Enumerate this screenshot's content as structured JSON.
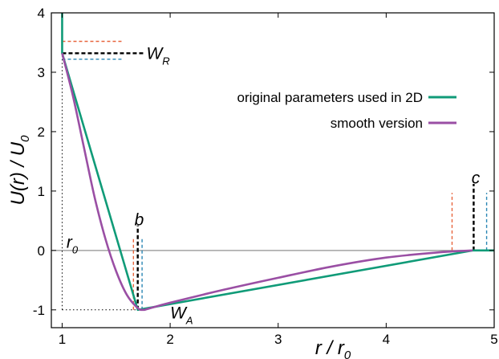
{
  "chart_data": {
    "type": "line",
    "title": "",
    "xlabel": {
      "main": "r / r",
      "sub": "0"
    },
    "ylabel": {
      "main": "U(r) / U",
      "sub": "0"
    },
    "xlim": [
      0.9,
      5.0
    ],
    "ylim": [
      -1.3,
      4.0
    ],
    "x_ticks": [
      "1",
      "2",
      "3",
      "4",
      "5"
    ],
    "y_ticks": [
      "-1",
      "0",
      "1",
      "2",
      "3",
      "4"
    ],
    "grid": false,
    "legend_position": "right",
    "colors": {
      "original": "#109b78",
      "smooth": "#9a4fa4",
      "reference": "#909090",
      "orange_dash": "#e8643c",
      "blue_dash": "#2a86b4",
      "black": "#000000"
    },
    "series": [
      {
        "name": "original parameters used in 2D",
        "color": "#109b78",
        "x": [
          1.0,
          1.0,
          1.0,
          1.7,
          4.8,
          5.0
        ],
        "y": [
          4.0,
          3.32,
          3.32,
          -1.0,
          0.0,
          0.0
        ]
      },
      {
        "name": "smooth version",
        "color": "#9a4fa4",
        "x": [
          1.0,
          1.1,
          1.2,
          1.3,
          1.4,
          1.5,
          1.6,
          1.7,
          1.75,
          1.8,
          2.0,
          2.5,
          3.0,
          3.5,
          4.0,
          4.5,
          4.8
        ],
        "y": [
          3.32,
          2.6,
          1.75,
          0.9,
          0.2,
          -0.35,
          -0.75,
          -0.97,
          -1.0,
          -0.98,
          -0.88,
          -0.66,
          -0.46,
          -0.27,
          -0.12,
          -0.03,
          0.0
        ]
      }
    ],
    "reference_lines": [
      {
        "orientation": "horizontal",
        "y": 0.0,
        "style": "solid"
      },
      {
        "orientation": "vertical",
        "x": 1.0,
        "y_from": -1.0,
        "y_to": 3.32,
        "style": "dotted"
      },
      {
        "orientation": "horizontal",
        "y": -1.0,
        "x_from": 1.0,
        "x_to": 1.7,
        "style": "dotted"
      }
    ],
    "dashed_markers": [
      {
        "color": "#e8643c",
        "orientation": "horizontal",
        "y": 3.52,
        "x_from": 1.0,
        "x_to": 1.55
      },
      {
        "color": "#000000",
        "orientation": "horizontal",
        "y": 3.32,
        "x_from": 1.0,
        "x_to": 1.75
      },
      {
        "color": "#2a86b4",
        "orientation": "horizontal",
        "y": 3.22,
        "x_from": 1.0,
        "x_to": 1.55
      },
      {
        "color": "#e8643c",
        "orientation": "vertical",
        "x": 1.66,
        "y_from": -1.0,
        "y_to": 0.22
      },
      {
        "color": "#000000",
        "orientation": "vertical",
        "x": 1.7,
        "y_from": -1.0,
        "y_to": 0.42
      },
      {
        "color": "#2a86b4",
        "orientation": "vertical",
        "x": 1.74,
        "y_from": -1.0,
        "y_to": 0.22
      },
      {
        "color": "#e8643c",
        "orientation": "vertical",
        "x": 4.61,
        "y_from": 0.0,
        "y_to": 0.97
      },
      {
        "color": "#000000",
        "orientation": "vertical",
        "x": 4.81,
        "y_from": 0.0,
        "y_to": 1.12
      },
      {
        "color": "#2a86b4",
        "orientation": "vertical",
        "x": 4.93,
        "y_from": 0.0,
        "y_to": 0.97
      }
    ],
    "annotations": [
      {
        "main": "W",
        "sub": "R",
        "x": 1.78,
        "y": 3.32
      },
      {
        "main": "b",
        "sub": "",
        "x": 1.67,
        "y": 0.52
      },
      {
        "main": "W",
        "sub": "A",
        "x": 2.0,
        "y": -1.05
      },
      {
        "main": "c",
        "sub": "",
        "x": 4.79,
        "y": 1.22
      },
      {
        "main": "r",
        "sub": "0",
        "x": 1.04,
        "y": 0.14
      }
    ]
  }
}
